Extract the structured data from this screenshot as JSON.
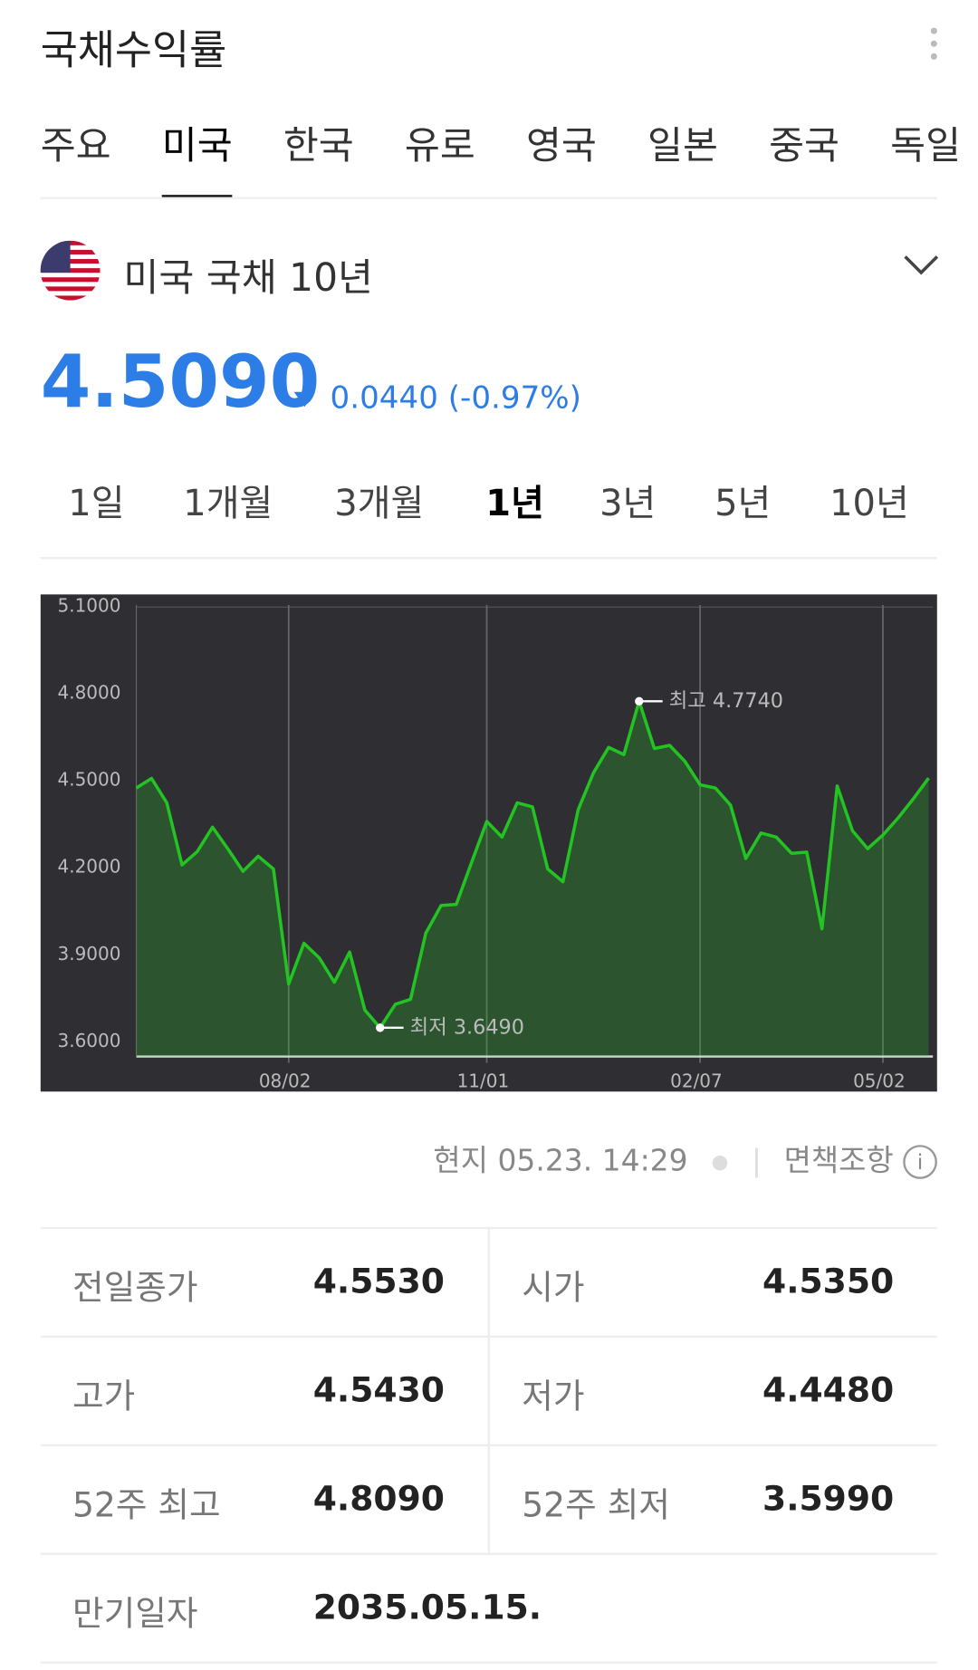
{
  "header": {
    "title": "국채수익률",
    "tabs": [
      "주요",
      "미국",
      "한국",
      "유로",
      "영국",
      "일본",
      "중국",
      "독일"
    ],
    "active_tab": 1
  },
  "instrument": {
    "name": "미국 국채 10년",
    "price": "4.5090",
    "change": "0.0440 (-0.97%)"
  },
  "ranges": {
    "items": [
      "1일",
      "1개월",
      "3개월",
      "1년",
      "3년",
      "5년",
      "10년"
    ],
    "active": 3
  },
  "chart_data": {
    "type": "line",
    "categories": [
      null,
      null,
      null,
      null,
      null,
      null,
      null,
      null,
      null,
      null,
      "08/02",
      null,
      null,
      null,
      null,
      null,
      null,
      null,
      null,
      null,
      null,
      null,
      null,
      "11/01",
      null,
      null,
      null,
      null,
      null,
      null,
      null,
      null,
      null,
      null,
      null,
      null,
      null,
      "02/07",
      null,
      null,
      null,
      null,
      null,
      null,
      null,
      null,
      null,
      null,
      null,
      "05/02",
      null,
      null,
      null
    ],
    "series": [
      {
        "color": "#22c322",
        "values": [
          4.475,
          4.508,
          4.424,
          4.21,
          4.256,
          4.34,
          4.266,
          4.188,
          4.24,
          4.196,
          3.8,
          3.94,
          3.89,
          3.806,
          3.91,
          3.71,
          3.649,
          3.73,
          3.747,
          3.975,
          4.07,
          4.074,
          4.218,
          4.36,
          4.306,
          4.424,
          4.41,
          4.196,
          4.152,
          4.4,
          4.527,
          4.615,
          4.59,
          4.774,
          4.611,
          4.622,
          4.567,
          4.486,
          4.475,
          4.416,
          4.232,
          4.32,
          4.306,
          4.25,
          4.254,
          3.99,
          4.482,
          4.328,
          4.266,
          4.313,
          4.372,
          4.438,
          4.509
        ]
      }
    ],
    "ylim": [
      3.55,
      5.135
    ],
    "yticks": [
      {
        "value": 3.6,
        "label": "3.6000"
      },
      {
        "value": 3.9,
        "label": "3.9000"
      },
      {
        "value": 4.2,
        "label": "4.2000"
      },
      {
        "value": 4.5,
        "label": "4.5000"
      },
      {
        "value": 4.8,
        "label": "4.8000"
      },
      {
        "value": 5.1,
        "label": "5.1000"
      }
    ],
    "annotations": [
      {
        "value": 4.774,
        "label": "최고 4.7740"
      },
      {
        "value": 3.649,
        "label": "최저 3.6490"
      }
    ],
    "grid": true
  },
  "timestamp": "현지 05.23. 14:29",
  "disclaimer": "면책조항",
  "table": {
    "rows": [
      [
        "전일종가",
        "4.5530",
        "시가",
        "4.5350"
      ],
      [
        "고가",
        "4.5430",
        "저가",
        "4.4480"
      ],
      [
        "52주 최고",
        "4.8090",
        "52주 최저",
        "3.5990"
      ],
      [
        "만기일자",
        "2035.05.15."
      ]
    ]
  }
}
